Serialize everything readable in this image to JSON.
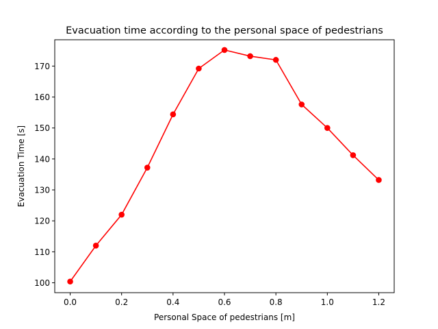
{
  "chart_data": {
    "type": "line",
    "title": "Evacuation time according to the personal space of pedestrians",
    "xlabel": "Personal Space of pedestrians [m]",
    "ylabel": "Evacuation Time [s]",
    "xlim": [
      -0.06,
      1.26
    ],
    "ylim": [
      96.8,
      178.5
    ],
    "xticks": [
      "0.0",
      "0.2",
      "0.4",
      "0.6",
      "0.8",
      "1.0",
      "1.2"
    ],
    "yticks": [
      "100",
      "110",
      "120",
      "130",
      "140",
      "150",
      "160",
      "170"
    ],
    "grid": false,
    "legend": "none",
    "series": [
      {
        "color": "#ff0000",
        "marker": "circle",
        "x": [
          0.0,
          0.1,
          0.2,
          0.3,
          0.4,
          0.5,
          0.6,
          0.7,
          0.8,
          0.9,
          1.0,
          1.1,
          1.2
        ],
        "y": [
          100.4,
          112.0,
          122.0,
          137.2,
          154.4,
          169.2,
          175.2,
          173.2,
          172.0,
          157.6,
          150.0,
          141.2,
          133.2
        ]
      }
    ]
  }
}
